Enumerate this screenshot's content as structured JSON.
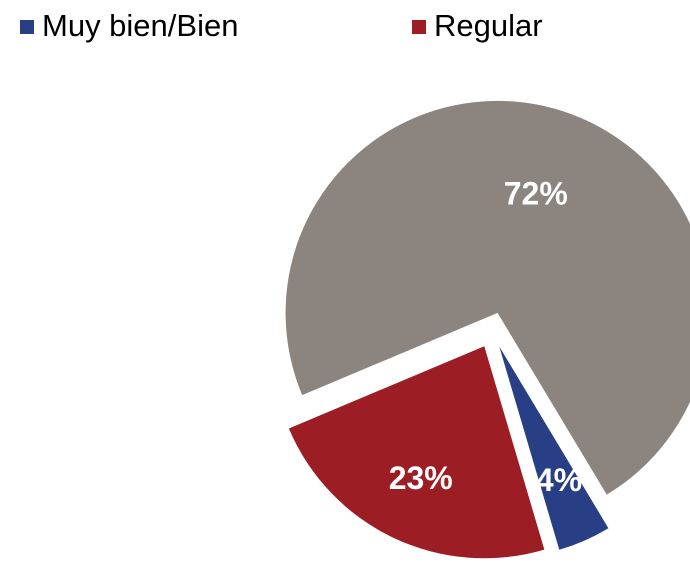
{
  "chart_data": {
    "type": "pie",
    "categories": [
      "Muy bien/Bien",
      "Regular",
      null
    ],
    "values": [
      4,
      23,
      72
    ],
    "value_labels": [
      "4%",
      "23%",
      "72%"
    ],
    "colors": [
      "#283f85",
      "#9c1e24",
      "#8c847f"
    ],
    "legend": "top"
  }
}
